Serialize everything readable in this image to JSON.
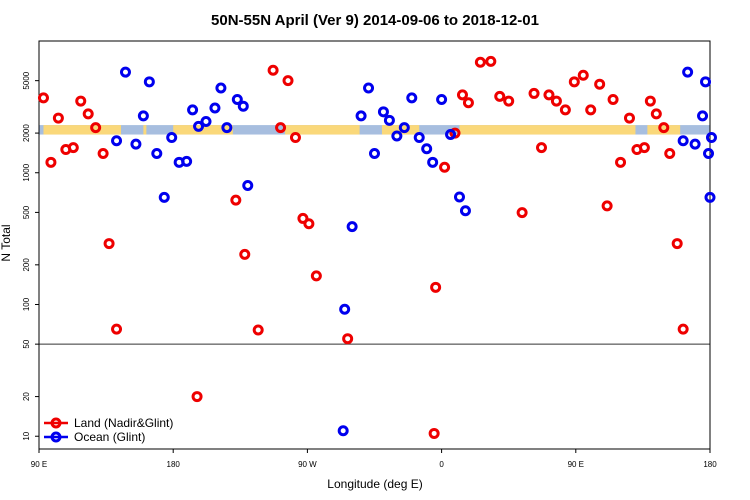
{
  "chart_data": {
    "type": "scatter",
    "title": "50N-55N April (Ver 9)   2014-09-06 to 2018-12-01",
    "xlabel": "Longitude (deg E)",
    "ylabel": "N Total",
    "xlim": [
      90,
      540
    ],
    "ylim": [
      8,
      10000
    ],
    "y_scale": "log",
    "grid": false,
    "reference_line": 50,
    "x_ticks": [
      {
        "value": 90,
        "label": "90 E"
      },
      {
        "value": 180,
        "label": "180"
      },
      {
        "value": 270,
        "label": "90 W"
      },
      {
        "value": 360,
        "label": "0"
      },
      {
        "value": 450,
        "label": "90 E"
      },
      {
        "value": 540,
        "label": "180"
      }
    ],
    "y_ticks": [
      {
        "value": 10,
        "label": "10"
      },
      {
        "value": 20,
        "label": "20"
      },
      {
        "value": 50,
        "label": "50"
      },
      {
        "value": 100,
        "label": "100"
      },
      {
        "value": 200,
        "label": "200"
      },
      {
        "value": 500,
        "label": "500"
      },
      {
        "value": 1000,
        "label": "1000"
      },
      {
        "value": 2000,
        "label": "2000"
      },
      {
        "value": 5000,
        "label": "5000"
      }
    ],
    "land_band": {
      "y_low": 1950,
      "y_high": 2300,
      "land_color": "#fad87a",
      "ocean_color": "#a7bedf"
    },
    "legend": {
      "position": "bottom-left"
    },
    "series": [
      {
        "name": "Land (Nadir&Glint)",
        "color": "#ee0000",
        "points": [
          [
            93,
            3700
          ],
          [
            98,
            1200
          ],
          [
            103,
            2600
          ],
          [
            108,
            1500
          ],
          [
            113,
            1550
          ],
          [
            118,
            3500
          ],
          [
            123,
            2800
          ],
          [
            128,
            2200
          ],
          [
            133,
            1400
          ],
          [
            137,
            290
          ],
          [
            142,
            65
          ],
          [
            196,
            20
          ],
          [
            247,
            6000
          ],
          [
            252,
            2200
          ],
          [
            257,
            5000
          ],
          [
            262,
            1850
          ],
          [
            267,
            450
          ],
          [
            271,
            410
          ],
          [
            276,
            165
          ],
          [
            222,
            620
          ],
          [
            228,
            240
          ],
          [
            237,
            64
          ],
          [
            297,
            55
          ],
          [
            355,
            10.5
          ],
          [
            356,
            135
          ],
          [
            362,
            1100
          ],
          [
            369,
            2000
          ],
          [
            374,
            3900
          ],
          [
            378,
            3400
          ],
          [
            386,
            6900
          ],
          [
            393,
            7000
          ],
          [
            399,
            3800
          ],
          [
            405,
            3500
          ],
          [
            414,
            498
          ],
          [
            422,
            4000
          ],
          [
            427,
            1550
          ],
          [
            432,
            3900
          ],
          [
            437,
            3500
          ],
          [
            443,
            3000
          ],
          [
            449,
            4900
          ],
          [
            455,
            5500
          ],
          [
            460,
            3000
          ],
          [
            466,
            4700
          ],
          [
            471,
            560
          ],
          [
            475,
            3600
          ],
          [
            480,
            1200
          ],
          [
            486,
            2600
          ],
          [
            491,
            1500
          ],
          [
            496,
            1550
          ],
          [
            500,
            3500
          ],
          [
            504,
            2800
          ],
          [
            509,
            2200
          ],
          [
            513,
            1400
          ],
          [
            518,
            290
          ],
          [
            522,
            65
          ]
        ]
      },
      {
        "name": "Ocean (Glint)",
        "color": "#0000ee",
        "points": [
          [
            142,
            1750
          ],
          [
            148,
            5800
          ],
          [
            155,
            1650
          ],
          [
            160,
            2700
          ],
          [
            164,
            4900
          ],
          [
            169,
            1400
          ],
          [
            174,
            650
          ],
          [
            179,
            1850
          ],
          [
            184,
            1200
          ],
          [
            189,
            1220
          ],
          [
            193,
            3000
          ],
          [
            197,
            2250
          ],
          [
            202,
            2450
          ],
          [
            208,
            3100
          ],
          [
            212,
            4400
          ],
          [
            216,
            2200
          ],
          [
            223,
            3600
          ],
          [
            227,
            3200
          ],
          [
            230,
            800
          ],
          [
            294,
            11
          ],
          [
            295,
            92
          ],
          [
            300,
            390
          ],
          [
            306,
            2700
          ],
          [
            311,
            4400
          ],
          [
            315,
            1400
          ],
          [
            321,
            2900
          ],
          [
            325,
            2500
          ],
          [
            330,
            1900
          ],
          [
            335,
            2200
          ],
          [
            340,
            3700
          ],
          [
            345,
            1850
          ],
          [
            350,
            1520
          ],
          [
            354,
            1200
          ],
          [
            360,
            3600
          ],
          [
            366,
            1950
          ],
          [
            372,
            655
          ],
          [
            376,
            515
          ],
          [
            522,
            1750
          ],
          [
            525,
            5800
          ],
          [
            530,
            1650
          ],
          [
            535,
            2700
          ],
          [
            537,
            4900
          ],
          [
            539,
            1400
          ],
          [
            540,
            650
          ],
          [
            541,
            1850
          ]
        ]
      }
    ]
  }
}
